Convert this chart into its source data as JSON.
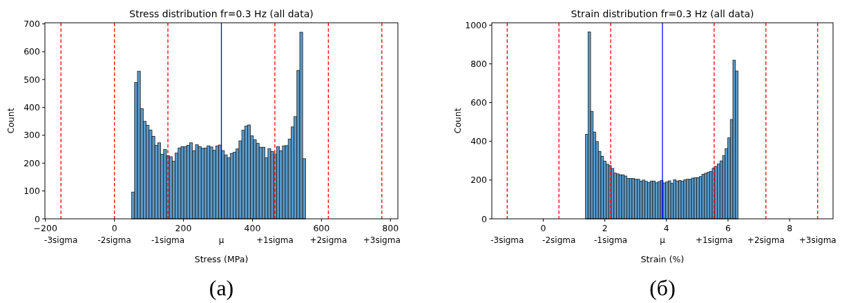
{
  "chart_data": [
    {
      "type": "histogram",
      "title": "Stress distribution fr=0.3 Hz (all data)",
      "xlabel": "Stress (MPa)",
      "ylabel": "Count",
      "color": "#5b9ac8",
      "bins": [
        50,
        58.4,
        66.8,
        75.2,
        83.6,
        92,
        100.4,
        108.8,
        117.2,
        125.6,
        134,
        142.4,
        150.8,
        159.2,
        167.6,
        176,
        184.4,
        192.8,
        201.2,
        209.6,
        218,
        226.4,
        234.8,
        243.2,
        251.6,
        260,
        268.4,
        276.8,
        285.2,
        293.6,
        302,
        310.4,
        318.8,
        327.2,
        335.6,
        344,
        352.4,
        360.8,
        369.2,
        377.6,
        386,
        394.4,
        402.8,
        411.2,
        419.6,
        428,
        436.4,
        444.8,
        453.2,
        461.6,
        470,
        478.4,
        486.8,
        495.2,
        503.6,
        512,
        520.4,
        528.8,
        537.2,
        545.6,
        554
      ],
      "values": [
        96,
        490,
        530,
        396,
        350,
        336,
        319,
        296,
        264,
        273,
        232,
        249,
        227,
        223,
        207,
        236,
        254,
        259,
        259,
        264,
        273,
        244,
        266,
        259,
        253,
        254,
        262,
        258,
        246,
        262,
        265,
        245,
        229,
        219,
        235,
        239,
        251,
        280,
        318,
        333,
        337,
        298,
        284,
        271,
        257,
        257,
        219,
        252,
        242,
        233,
        259,
        244,
        262,
        263,
        286,
        330,
        367,
        533,
        670,
        216
      ],
      "xlim": [
        -201.5,
        821.5
      ],
      "xticks": [
        -200,
        0,
        200,
        400,
        600,
        800
      ],
      "ylim": [
        0,
        704
      ],
      "yticks": [
        0,
        100,
        200,
        300,
        400,
        500,
        600,
        700
      ],
      "ref_lines": [
        {
          "axis": "x",
          "value": -155,
          "label": "-3sigma",
          "color": "#ff0000",
          "line_style": "dashed"
        },
        {
          "axis": "x",
          "value": 0,
          "label": "-2sigma",
          "color": "#ff0000",
          "line_style": "dashed"
        },
        {
          "axis": "x",
          "value": 155,
          "label": "-1sigma",
          "color": "#ff0000",
          "line_style": "dashed"
        },
        {
          "axis": "x",
          "value": 310,
          "label": "μ",
          "color": "#0000ff",
          "line_style": "solid"
        },
        {
          "axis": "x",
          "value": 465,
          "label": "+1sigma",
          "color": "#ff0000",
          "line_style": "dashed"
        },
        {
          "axis": "x",
          "value": 620,
          "label": "+2sigma",
          "color": "#ff0000",
          "line_style": "dashed"
        },
        {
          "axis": "x",
          "value": 775,
          "label": "+3sigma",
          "color": "#ff0000",
          "line_style": "dashed"
        }
      ],
      "annotations": [
        "(a)"
      ]
    },
    {
      "type": "histogram",
      "title": "Strain distribution fr=0.3 Hz (all data)",
      "xlabel": "Strain (%)",
      "ylabel": "Count",
      "color": "#5b9ac8",
      "bins": [
        1.37,
        1.454,
        1.538,
        1.622,
        1.706,
        1.79,
        1.874,
        1.958,
        2.042,
        2.126,
        2.21,
        2.294,
        2.378,
        2.462,
        2.546,
        2.63,
        2.714,
        2.798,
        2.882,
        2.966,
        3.05,
        3.134,
        3.218,
        3.302,
        3.386,
        3.47,
        3.554,
        3.638,
        3.722,
        3.806,
        3.89,
        3.974,
        4.058,
        4.142,
        4.226,
        4.31,
        4.394,
        4.478,
        4.562,
        4.646,
        4.73,
        4.814,
        4.898,
        4.982,
        5.066,
        5.15,
        5.234,
        5.318,
        5.402,
        5.486,
        5.57,
        5.654,
        5.738,
        5.822,
        5.906,
        5.99,
        6.074,
        6.158,
        6.242,
        6.326
      ],
      "values": [
        436,
        965,
        555,
        448,
        399,
        348,
        323,
        298,
        282,
        275,
        260,
        236,
        232,
        227,
        227,
        221,
        208,
        208,
        208,
        204,
        204,
        194,
        200,
        193,
        187,
        195,
        195,
        186,
        192,
        198,
        185,
        190,
        196,
        183,
        201,
        195,
        198,
        194,
        201,
        204,
        204,
        210,
        212,
        213,
        218,
        230,
        235,
        240,
        245,
        261,
        271,
        283,
        299,
        326,
        362,
        418,
        513,
        819,
        763
      ],
      "xlim": [
        -1.67,
        9.41
      ],
      "xticks": [
        0,
        2,
        4,
        6,
        8
      ],
      "ylim": [
        0,
        1012
      ],
      "yticks": [
        0,
        200,
        400,
        600,
        800,
        1000
      ],
      "ref_lines": [
        {
          "axis": "x",
          "value": -1.17,
          "label": "-3sigma",
          "color": "#ff0000",
          "line_style": "dashed"
        },
        {
          "axis": "x",
          "value": 0.51,
          "label": "-2sigma",
          "color": "#ff0000",
          "line_style": "dashed"
        },
        {
          "axis": "x",
          "value": 2.19,
          "label": "-1sigma",
          "color": "#ff0000",
          "line_style": "dashed"
        },
        {
          "axis": "x",
          "value": 3.87,
          "label": "μ",
          "color": "#0000ff",
          "line_style": "solid"
        },
        {
          "axis": "x",
          "value": 5.55,
          "label": "+1sigma",
          "color": "#ff0000",
          "line_style": "dashed"
        },
        {
          "axis": "x",
          "value": 7.23,
          "label": "+2sigma",
          "color": "#ff0000",
          "line_style": "dashed"
        },
        {
          "axis": "x",
          "value": 8.91,
          "label": "+3sigma",
          "color": "#ff0000",
          "line_style": "dashed"
        }
      ],
      "annotations": [
        "(б)"
      ]
    }
  ]
}
